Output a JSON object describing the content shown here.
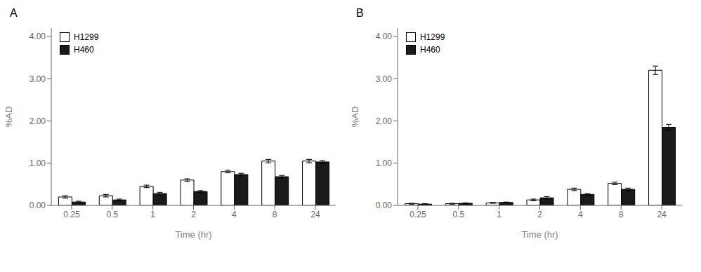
{
  "chart_data": [
    {
      "type": "bar",
      "title": "A",
      "categories": [
        "0.25",
        "0.5",
        "1",
        "2",
        "4",
        "8",
        "24"
      ],
      "series": [
        {
          "name": "H1299",
          "color": "#ffffff",
          "values": [
            0.2,
            0.23,
            0.45,
            0.6,
            0.8,
            1.05,
            1.05
          ],
          "errors": [
            0.03,
            0.03,
            0.03,
            0.03,
            0.03,
            0.04,
            0.04
          ]
        },
        {
          "name": "H460",
          "color": "#1a1a1a",
          "values": [
            0.08,
            0.13,
            0.28,
            0.33,
            0.73,
            0.68,
            1.03
          ],
          "errors": [
            0.02,
            0.02,
            0.03,
            0.02,
            0.03,
            0.03,
            0.03
          ]
        }
      ],
      "xlabel": "Time (hr)",
      "ylabel": "%AD",
      "ylim": [
        0,
        4.2
      ],
      "yticks": [
        {
          "value": 0,
          "label": "0.00"
        },
        {
          "value": 1,
          "label": "1.00"
        },
        {
          "value": 2,
          "label": "2.00"
        },
        {
          "value": 3,
          "label": "3.00"
        },
        {
          "value": 4,
          "label": "4.00"
        }
      ],
      "legend": "upper left",
      "grid": false
    },
    {
      "type": "bar",
      "title": "B",
      "categories": [
        "0.25",
        "0.5",
        "1",
        "2",
        "4",
        "8",
        "24"
      ],
      "series": [
        {
          "name": "H1299",
          "color": "#ffffff",
          "values": [
            0.04,
            0.04,
            0.06,
            0.13,
            0.38,
            0.52,
            3.2
          ],
          "errors": [
            0.01,
            0.01,
            0.01,
            0.02,
            0.03,
            0.03,
            0.1
          ]
        },
        {
          "name": "H460",
          "color": "#1a1a1a",
          "values": [
            0.03,
            0.05,
            0.07,
            0.18,
            0.26,
            0.38,
            1.85
          ],
          "errors": [
            0.01,
            0.01,
            0.01,
            0.03,
            0.02,
            0.03,
            0.07
          ]
        }
      ],
      "xlabel": "Time (hr)",
      "ylabel": "%AD",
      "ylim": [
        0,
        4.2
      ],
      "yticks": [
        {
          "value": 0,
          "label": "0.00"
        },
        {
          "value": 1,
          "label": "1.00"
        },
        {
          "value": 2,
          "label": "2.00"
        },
        {
          "value": 3,
          "label": "3.00"
        },
        {
          "value": 4,
          "label": "4.00"
        }
      ],
      "legend": "upper left",
      "grid": false
    }
  ]
}
